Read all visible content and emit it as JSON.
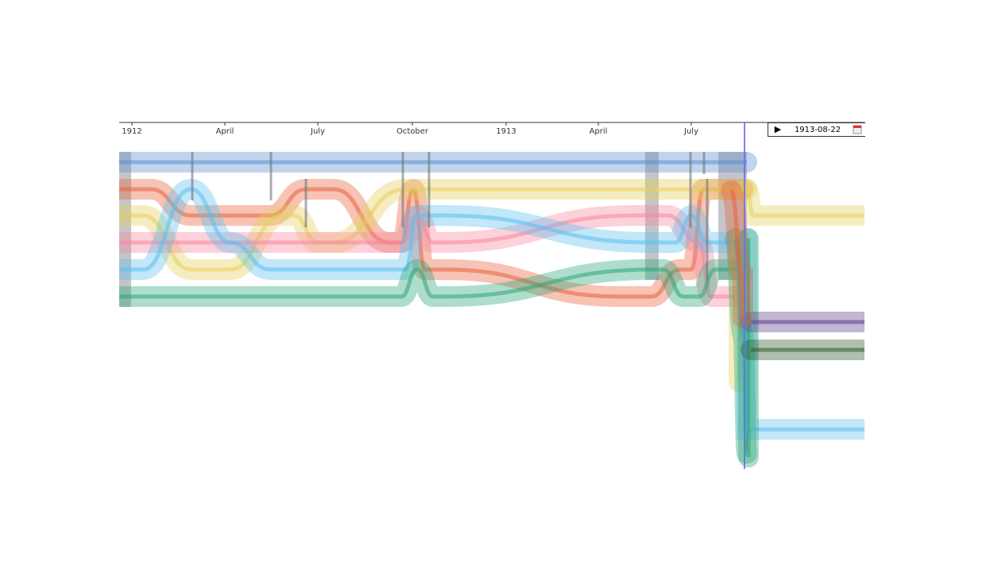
{
  "timeline": {
    "ticks": [
      "1912",
      "April",
      "July",
      "October",
      "1913",
      "April",
      "July"
    ]
  },
  "controls": {
    "play": "▶",
    "date": "1913-08-22"
  }
}
